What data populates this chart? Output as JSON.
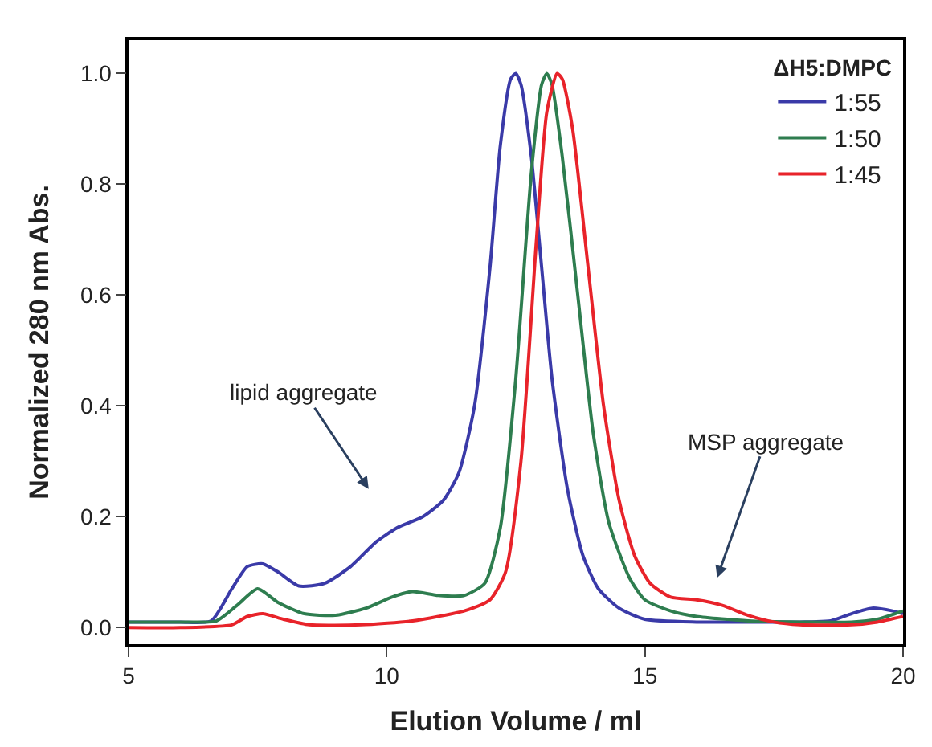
{
  "chart_data": {
    "type": "line",
    "xlabel": "Elution Volume / ml",
    "ylabel": "Normalized 280 nm Abs.",
    "legend_title": "ΔH5:DMPC",
    "legend": "top right",
    "marker": "none",
    "line_style": "solid",
    "xlim": [
      5,
      20
    ],
    "xticks": [
      5,
      10,
      15,
      20
    ],
    "ylim": [
      -0.03,
      1.06
    ],
    "yticks": [
      {
        "value": 0,
        "label": "0.0"
      },
      0.2,
      0.4,
      0.6,
      0.8,
      {
        "value": 1,
        "label": "1.0"
      }
    ],
    "annotations": [
      "lipid aggregate",
      "MSP aggregate"
    ],
    "series": [
      {
        "name": "1:55",
        "color": "#3a3aa8",
        "x": [
          5,
          6,
          6.6,
          7,
          7.3,
          7.6,
          7.9,
          8.3,
          8.8,
          9.3,
          9.8,
          10.2,
          10.7,
          11.1,
          11.4,
          11.7,
          12,
          12.2,
          12.4,
          12.5,
          12.6,
          12.8,
          13,
          13.2,
          13.5,
          13.8,
          14.1,
          14.5,
          15,
          16,
          17,
          18,
          18.6,
          19,
          19.4,
          19.8,
          20
        ],
        "values": [
          0.01,
          0.01,
          0.012,
          0.07,
          0.11,
          0.115,
          0.1,
          0.075,
          0.08,
          0.11,
          0.155,
          0.18,
          0.2,
          0.23,
          0.28,
          0.4,
          0.65,
          0.87,
          0.99,
          1.0,
          0.98,
          0.85,
          0.65,
          0.45,
          0.25,
          0.13,
          0.07,
          0.035,
          0.015,
          0.01,
          0.01,
          0.01,
          0.012,
          0.025,
          0.035,
          0.03,
          0.025
        ]
      },
      {
        "name": "1:50",
        "color": "#2e7d4f",
        "x": [
          5,
          6,
          6.7,
          7.1,
          7.5,
          7.9,
          8.4,
          9,
          9.6,
          10.1,
          10.5,
          11,
          11.5,
          11.9,
          12.2,
          12.5,
          12.8,
          13,
          13.1,
          13.2,
          13.4,
          13.7,
          14,
          14.3,
          14.7,
          15,
          15.5,
          16,
          17,
          18,
          19,
          19.5,
          20
        ],
        "values": [
          0.01,
          0.01,
          0.012,
          0.04,
          0.07,
          0.045,
          0.025,
          0.022,
          0.035,
          0.055,
          0.065,
          0.058,
          0.058,
          0.08,
          0.18,
          0.45,
          0.82,
          0.98,
          1.0,
          0.98,
          0.85,
          0.6,
          0.35,
          0.19,
          0.09,
          0.05,
          0.03,
          0.02,
          0.012,
          0.01,
          0.01,
          0.015,
          0.03
        ]
      },
      {
        "name": "1:45",
        "color": "#e8232a",
        "x": [
          5,
          6,
          7,
          7.3,
          7.6,
          8,
          8.5,
          9.5,
          10.5,
          11,
          11.5,
          12,
          12.3,
          12.6,
          12.9,
          13.1,
          13.3,
          13.4,
          13.6,
          13.9,
          14.2,
          14.5,
          14.8,
          15.1,
          15.5,
          16,
          16.5,
          17,
          17.5,
          18,
          19,
          19.5,
          20
        ],
        "values": [
          0.0,
          0.0,
          0.005,
          0.02,
          0.025,
          0.015,
          0.005,
          0.005,
          0.012,
          0.02,
          0.03,
          0.05,
          0.1,
          0.3,
          0.7,
          0.93,
          1.0,
          0.99,
          0.9,
          0.65,
          0.4,
          0.23,
          0.13,
          0.08,
          0.055,
          0.05,
          0.04,
          0.022,
          0.01,
          0.005,
          0.005,
          0.01,
          0.02
        ]
      }
    ]
  }
}
